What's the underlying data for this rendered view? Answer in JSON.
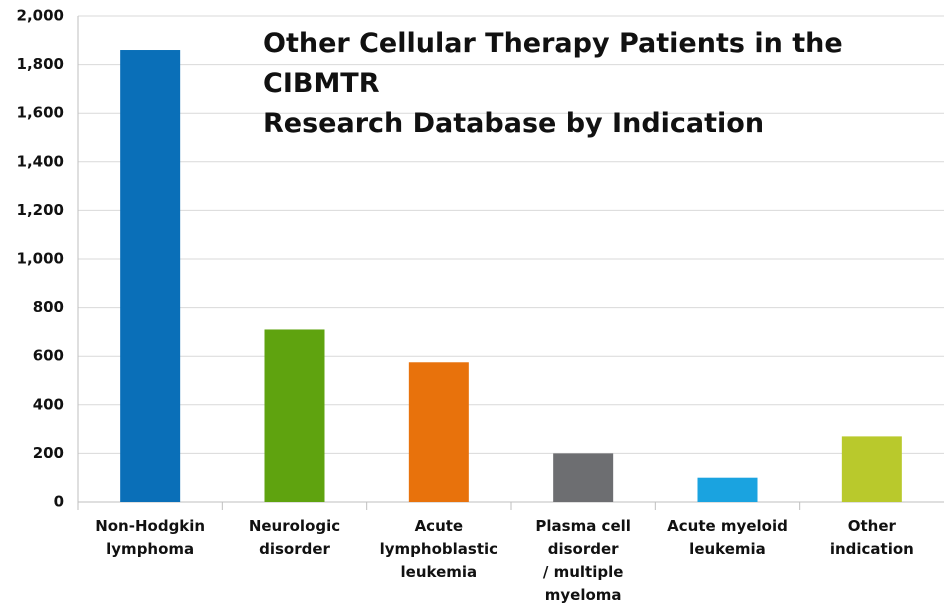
{
  "chart_data": {
    "type": "bar",
    "title": "Other Cellular Therapy Patients in the CIBMTR\nResearch Database by Indication",
    "categories": [
      "Non-Hodgkin\nlymphoma",
      "Neurologic\ndisorder",
      "Acute\nlymphoblastic\nleukemia",
      "Plasma cell\ndisorder\n/ multiple\nmyeloma",
      "Acute myeloid\nleukemia",
      "Other\nindication"
    ],
    "values": [
      1860,
      710,
      575,
      200,
      100,
      270
    ],
    "colors": [
      "#0a6fb8",
      "#5fa30f",
      "#e8720c",
      "#6d6e71",
      "#1aa3e0",
      "#b9c92c"
    ],
    "ylim": [
      0,
      2000
    ],
    "yticks": [
      0,
      200,
      400,
      600,
      800,
      {
        "value": 1000,
        "label": "1,000"
      },
      {
        "value": 1200,
        "label": "1,200"
      },
      {
        "value": 1400,
        "label": "1,400"
      },
      {
        "value": 1600,
        "label": "1,600"
      },
      {
        "value": 1800,
        "label": "1,800"
      },
      {
        "value": 2000,
        "label": "2,000"
      }
    ],
    "grid": true
  }
}
